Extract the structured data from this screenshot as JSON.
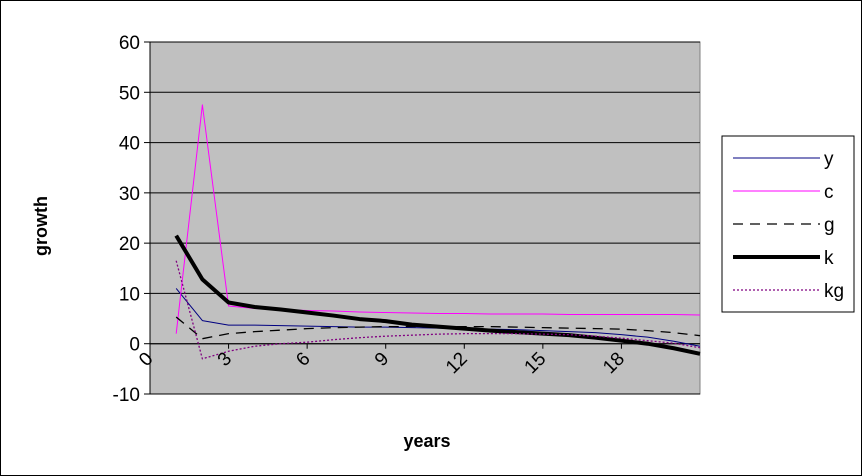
{
  "chart_data": {
    "type": "line",
    "title": "",
    "xlabel": "years",
    "ylabel": "growth",
    "x": [
      1,
      2,
      3,
      4,
      5,
      6,
      7,
      8,
      9,
      10,
      11,
      12,
      13,
      14,
      15,
      16,
      17,
      18,
      19,
      20,
      21
    ],
    "xlim": [
      0,
      21
    ],
    "ylim": [
      -10,
      60
    ],
    "x_ticks": [
      "0",
      "3",
      "6",
      "9",
      "12",
      "15",
      "18"
    ],
    "y_ticks": [
      "60",
      "50",
      "40",
      "30",
      "20",
      "10",
      "0",
      "-10"
    ],
    "grid": "horizontal",
    "plot_background": "#c0c0c0",
    "legend_position": "right",
    "series": [
      {
        "name": "y",
        "color": "#000080",
        "style": "solid",
        "width": 1,
        "values": [
          11,
          4.6,
          3.7,
          3.7,
          3.6,
          3.5,
          3.4,
          3.3,
          3.3,
          3.2,
          3.1,
          3.0,
          2.9,
          2.8,
          2.6,
          2.4,
          2.2,
          1.8,
          1.3,
          0.5,
          -0.5
        ]
      },
      {
        "name": "c",
        "color": "#ff00ff",
        "style": "solid",
        "width": 1,
        "values": [
          2,
          47.5,
          7.5,
          7.0,
          6.8,
          6.6,
          6.5,
          6.3,
          6.2,
          6.1,
          6.0,
          6.0,
          5.9,
          5.9,
          5.9,
          5.8,
          5.8,
          5.8,
          5.8,
          5.8,
          5.7
        ]
      },
      {
        "name": "g",
        "color": "#000000",
        "style": "dashed",
        "width": 1.3,
        "values": [
          5.3,
          1.0,
          2.0,
          2.4,
          2.7,
          3.0,
          3.2,
          3.3,
          3.4,
          3.4,
          3.4,
          3.4,
          3.4,
          3.3,
          3.2,
          3.1,
          3.0,
          2.9,
          2.6,
          2.2,
          1.6
        ]
      },
      {
        "name": "k",
        "color": "#000000",
        "style": "solid",
        "width": 4,
        "values": [
          21.5,
          12.8,
          8.2,
          7.3,
          6.8,
          6.2,
          5.6,
          4.9,
          4.5,
          3.8,
          3.4,
          3.0,
          2.6,
          2.3,
          2.0,
          1.7,
          1.2,
          0.6,
          0.0,
          -0.9,
          -2.0
        ]
      },
      {
        "name": "kg",
        "color": "#800080",
        "style": "dotted",
        "width": 1.3,
        "values": [
          16.5,
          -3.0,
          -1.5,
          -0.5,
          0.0,
          0.3,
          0.8,
          1.2,
          1.5,
          1.7,
          1.9,
          2.0,
          2.0,
          2.0,
          1.9,
          1.8,
          1.5,
          1.1,
          0.6,
          0.1,
          -0.8
        ]
      }
    ]
  }
}
